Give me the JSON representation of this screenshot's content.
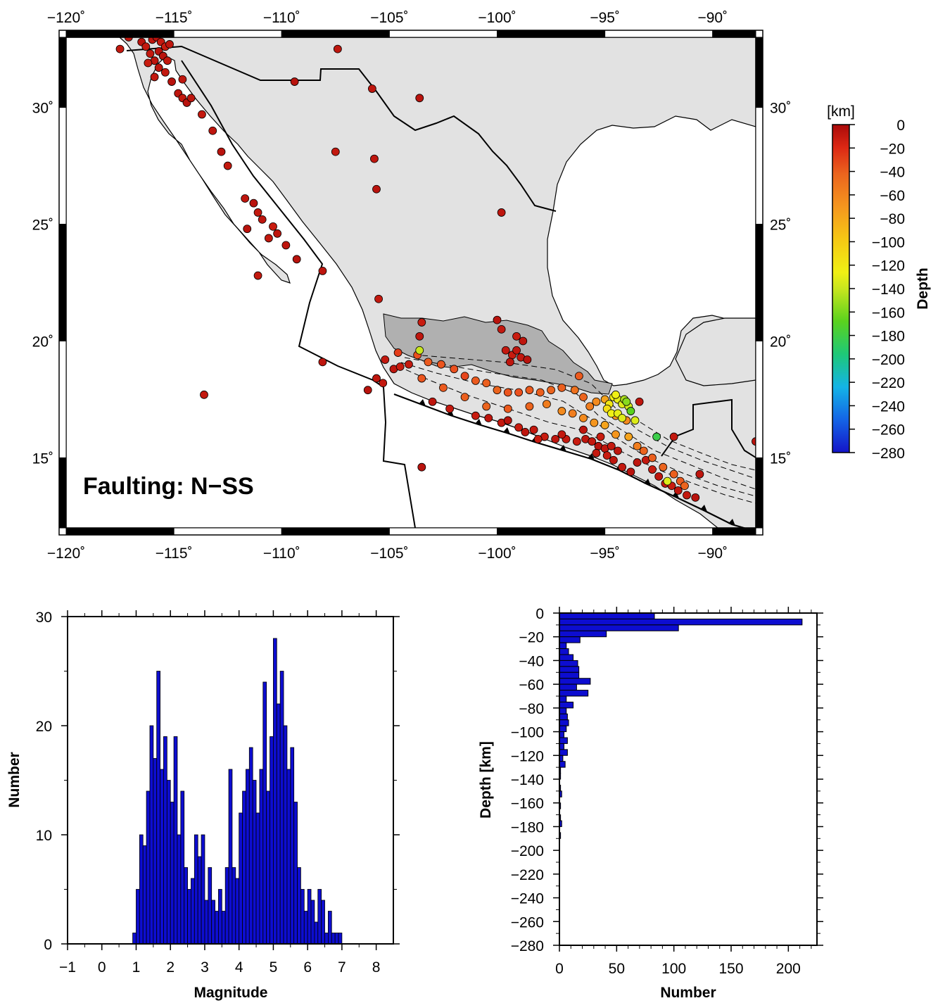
{
  "map": {
    "lon_ticks": [
      "−120˚",
      "−115˚",
      "−110˚",
      "−105˚",
      "−100˚",
      "−95˚",
      "−90˚"
    ],
    "lat_ticks": [
      "30˚",
      "25˚",
      "20˚",
      "15˚"
    ],
    "label": "Faulting: N−SS"
  },
  "colorbar": {
    "unit": "[km]",
    "title": "Depth",
    "ticks": [
      "0",
      "−20",
      "−40",
      "−60",
      "−80",
      "−100",
      "−120",
      "−140",
      "−160",
      "−180",
      "−200",
      "−220",
      "−240",
      "−260",
      "−280"
    ],
    "range": [
      -280,
      0
    ]
  },
  "colors": {
    "land": "#e2e2e2",
    "volcanic_belt": "#b0b0b0",
    "ocean": "#ffffff",
    "bar_fill": "#0d0dd0"
  },
  "chart_data": [
    {
      "type": "scatter",
      "xlim": [
        -120,
        -88
      ],
      "ylim": [
        12,
        33
      ],
      "points": [
        [
          -117.5,
          32.5,
          -10
        ],
        [
          -117.1,
          33.0,
          -8
        ],
        [
          -116.5,
          32.8,
          -6
        ],
        [
          -116.3,
          32.6,
          -10
        ],
        [
          -116.0,
          32.9,
          -8
        ],
        [
          -115.8,
          33.0,
          -5
        ],
        [
          -115.6,
          32.8,
          -10
        ],
        [
          -115.4,
          32.6,
          -12
        ],
        [
          -115.7,
          32.4,
          -6
        ],
        [
          -115.2,
          32.7,
          -8
        ],
        [
          -116.1,
          32.3,
          -10
        ],
        [
          -115.9,
          32.0,
          -8
        ],
        [
          -115.5,
          32.2,
          -6
        ],
        [
          -115.3,
          32.0,
          -10
        ],
        [
          -116.2,
          31.9,
          -12
        ],
        [
          -115.7,
          31.7,
          -8
        ],
        [
          -115.9,
          31.3,
          -10
        ],
        [
          -115.1,
          31.1,
          -6
        ],
        [
          -114.6,
          31.2,
          -8
        ],
        [
          -115.4,
          31.5,
          -10
        ],
        [
          -114.8,
          30.6,
          -8
        ],
        [
          -114.6,
          30.4,
          -10
        ],
        [
          -114.4,
          30.2,
          -6
        ],
        [
          -114.2,
          30.4,
          -8
        ],
        [
          -113.7,
          29.7,
          -10
        ],
        [
          -113.2,
          29.0,
          -8
        ],
        [
          -112.8,
          28.1,
          -6
        ],
        [
          -112.5,
          27.5,
          -10
        ],
        [
          -111.7,
          26.1,
          -8
        ],
        [
          -111.3,
          25.9,
          -6
        ],
        [
          -111.1,
          25.5,
          -10
        ],
        [
          -110.9,
          25.2,
          -8
        ],
        [
          -110.4,
          24.9,
          -12
        ],
        [
          -110.2,
          24.6,
          -8
        ],
        [
          -110.6,
          24.4,
          -10
        ],
        [
          -111.6,
          24.8,
          -6
        ],
        [
          -109.8,
          24.1,
          -8
        ],
        [
          -109.3,
          23.5,
          -6
        ],
        [
          -108.1,
          23.0,
          -8
        ],
        [
          -111.1,
          22.8,
          -10
        ],
        [
          -107.4,
          32.5,
          -8
        ],
        [
          -109.4,
          31.1,
          -6
        ],
        [
          -105.8,
          30.8,
          -8
        ],
        [
          -103.6,
          30.4,
          -6
        ],
        [
          -107.5,
          28.1,
          -10
        ],
        [
          -105.7,
          27.8,
          -8
        ],
        [
          -105.6,
          26.5,
          -6
        ],
        [
          -99.8,
          25.5,
          -8
        ],
        [
          -113.6,
          17.7,
          -10
        ],
        [
          -108.1,
          19.1,
          -8
        ],
        [
          -103.5,
          14.6,
          -6
        ],
        [
          -88.0,
          15.7,
          -8
        ],
        [
          -91.8,
          15.9,
          -10
        ],
        [
          -93.4,
          17.4,
          -8
        ],
        [
          -105.5,
          21.8,
          -10
        ],
        [
          -103.5,
          20.8,
          -12
        ],
        [
          -103.6,
          20.2,
          -8
        ],
        [
          -100.0,
          20.9,
          -6
        ],
        [
          -99.8,
          20.5,
          -10
        ],
        [
          -99.1,
          20.2,
          -12
        ],
        [
          -98.8,
          20.0,
          -8
        ],
        [
          -99.6,
          19.6,
          -10
        ],
        [
          -99.3,
          19.4,
          -12
        ],
        [
          -99.1,
          19.6,
          -8
        ],
        [
          -98.9,
          19.3,
          -10
        ],
        [
          -98.6,
          19.2,
          -6
        ],
        [
          -99.4,
          19.1,
          -8
        ],
        [
          -105.2,
          19.2,
          -10
        ],
        [
          -104.8,
          18.8,
          -8
        ],
        [
          -104.5,
          18.9,
          -12
        ],
        [
          -104.1,
          19.0,
          -10
        ],
        [
          -105.6,
          18.4,
          -8
        ],
        [
          -105.3,
          18.2,
          -10
        ],
        [
          -106.0,
          17.9,
          -6
        ],
        [
          -103.0,
          17.4,
          -8
        ],
        [
          -102.2,
          17.1,
          -10
        ],
        [
          -101.0,
          16.8,
          -12
        ],
        [
          -100.4,
          16.7,
          -8
        ],
        [
          -99.8,
          16.5,
          -10
        ],
        [
          -99.5,
          16.6,
          -6
        ],
        [
          -99.0,
          16.3,
          -12
        ],
        [
          -98.7,
          16.1,
          -8
        ],
        [
          -98.3,
          16.2,
          -10
        ],
        [
          -97.8,
          15.9,
          -12
        ],
        [
          -97.3,
          15.8,
          -8
        ],
        [
          -96.8,
          15.8,
          -10
        ],
        [
          -96.3,
          15.7,
          -12
        ],
        [
          -95.9,
          15.8,
          -8
        ],
        [
          -95.6,
          15.7,
          -10
        ],
        [
          -95.3,
          15.5,
          -6
        ],
        [
          -95.0,
          15.4,
          -8
        ],
        [
          -95.4,
          15.2,
          -10
        ],
        [
          -94.9,
          15.1,
          -12
        ],
        [
          -94.6,
          14.9,
          -8
        ],
        [
          -94.2,
          14.6,
          -10
        ],
        [
          -93.8,
          14.4,
          -6
        ],
        [
          -93.5,
          14.8,
          -8
        ],
        [
          -93.1,
          14.9,
          -10
        ],
        [
          -92.8,
          14.5,
          -12
        ],
        [
          -92.5,
          14.2,
          -8
        ],
        [
          -92.2,
          13.9,
          -10
        ],
        [
          -91.9,
          13.8,
          -12
        ],
        [
          -91.6,
          13.6,
          -8
        ],
        [
          -91.2,
          13.4,
          -10
        ],
        [
          -90.8,
          13.3,
          -6
        ],
        [
          -90.6,
          14.3,
          -8
        ],
        [
          -94.7,
          15.5,
          -10
        ],
        [
          -95.2,
          15.9,
          -12
        ],
        [
          -94.4,
          15.3,
          -8
        ],
        [
          -97.0,
          16.0,
          -10
        ],
        [
          -98.1,
          15.8,
          -12
        ],
        [
          -96.0,
          16.2,
          -8
        ],
        [
          -104.6,
          19.5,
          -30
        ],
        [
          -103.7,
          19.4,
          -40
        ],
        [
          -103.2,
          19.1,
          -50
        ],
        [
          -102.6,
          19.0,
          -45
        ],
        [
          -102.0,
          18.8,
          -40
        ],
        [
          -101.5,
          18.5,
          -35
        ],
        [
          -101.0,
          18.3,
          -50
        ],
        [
          -100.5,
          18.2,
          -55
        ],
        [
          -100.0,
          17.9,
          -60
        ],
        [
          -99.5,
          17.8,
          -45
        ],
        [
          -99.0,
          17.8,
          -40
        ],
        [
          -98.5,
          17.9,
          -50
        ],
        [
          -98.0,
          17.8,
          -55
        ],
        [
          -97.5,
          17.9,
          -60
        ],
        [
          -97.0,
          18.0,
          -55
        ],
        [
          -96.4,
          17.9,
          -65
        ],
        [
          -96.0,
          17.6,
          -60
        ],
        [
          -95.7,
          17.2,
          -70
        ],
        [
          -95.4,
          17.4,
          -75
        ],
        [
          -95.0,
          17.5,
          -85
        ],
        [
          -103.5,
          18.4,
          -45
        ],
        [
          -102.5,
          18.0,
          -50
        ],
        [
          -101.5,
          17.6,
          -55
        ],
        [
          -100.5,
          17.2,
          -60
        ],
        [
          -99.5,
          17.1,
          -50
        ],
        [
          -98.5,
          17.2,
          -60
        ],
        [
          -97.7,
          17.3,
          -70
        ],
        [
          -97.0,
          17.0,
          -75
        ],
        [
          -96.5,
          16.9,
          -70
        ],
        [
          -96.0,
          16.7,
          -75
        ],
        [
          -95.5,
          16.5,
          -80
        ],
        [
          -95.0,
          16.4,
          -85
        ],
        [
          -94.5,
          16.0,
          -80
        ],
        [
          -93.9,
          15.9,
          -85
        ],
        [
          -93.5,
          15.5,
          -70
        ],
        [
          -93.2,
          15.3,
          -60
        ],
        [
          -92.8,
          15.0,
          -55
        ],
        [
          -92.3,
          14.6,
          -60
        ],
        [
          -91.8,
          14.3,
          -55
        ],
        [
          -91.5,
          14.0,
          -50
        ],
        [
          -91.3,
          13.8,
          -60
        ],
        [
          -96.2,
          18.5,
          -50
        ],
        [
          -94.0,
          16.6,
          -75
        ],
        [
          -94.5,
          16.8,
          -80
        ],
        [
          -94.6,
          17.6,
          -120
        ],
        [
          -94.4,
          17.5,
          -125
        ],
        [
          -94.2,
          17.3,
          -130
        ],
        [
          -94.8,
          17.3,
          -115
        ],
        [
          -94.9,
          17.1,
          -110
        ],
        [
          -94.7,
          16.9,
          -120
        ],
        [
          -94.4,
          16.9,
          -125
        ],
        [
          -94.2,
          16.7,
          -130
        ],
        [
          -94.5,
          17.7,
          -120
        ],
        [
          -93.6,
          16.6,
          -130
        ],
        [
          -93.9,
          17.2,
          -135
        ],
        [
          -94.1,
          17.5,
          -150
        ],
        [
          -94.0,
          17.4,
          -165
        ],
        [
          -93.8,
          17.0,
          -180
        ],
        [
          -92.6,
          15.9,
          -190
        ],
        [
          -103.6,
          19.6,
          -140
        ],
        [
          -92.1,
          14.0,
          -130
        ]
      ]
    },
    {
      "type": "bar",
      "xlabel": "Magnitude",
      "ylabel": "Number",
      "xlim": [
        -1,
        8.5
      ],
      "ylim": [
        0,
        30
      ],
      "xticks": [
        "−1",
        "0",
        "1",
        "2",
        "3",
        "4",
        "5",
        "6",
        "7",
        "8"
      ],
      "yticks": [
        "0",
        "10",
        "20",
        "30"
      ],
      "bin_width": 0.1,
      "bin_start": 0.9,
      "values": [
        1,
        5,
        10,
        9,
        14,
        20,
        17,
        25,
        16,
        19,
        15,
        13,
        19,
        10,
        14,
        7,
        5,
        6,
        10,
        8,
        10,
        4,
        7,
        4,
        3,
        5,
        3,
        7,
        16,
        7,
        6,
        12,
        14,
        16,
        18,
        15,
        12,
        16,
        24,
        14,
        19,
        28,
        22,
        25,
        20,
        16,
        18,
        13,
        7,
        5,
        3,
        5,
        4,
        2,
        5,
        4,
        1,
        3,
        1,
        1,
        1
      ]
    },
    {
      "type": "bar",
      "orientation": "horizontal",
      "xlabel": "Number",
      "ylabel": "Depth [km]",
      "xlim": [
        0,
        225
      ],
      "ylim": [
        -280,
        0
      ],
      "xticks": [
        "0",
        "50",
        "100",
        "150",
        "200"
      ],
      "yticks": [
        "0",
        "−20",
        "−40",
        "−60",
        "−80",
        "−100",
        "−120",
        "−140",
        "−160",
        "−180",
        "−200",
        "−220",
        "−240",
        "−260",
        "−280"
      ],
      "bin_width": 5,
      "bin_top": 0,
      "values": [
        83,
        212,
        104,
        41,
        18,
        6,
        8,
        12,
        16,
        17,
        17,
        27,
        15,
        25,
        6,
        12,
        6,
        7,
        8,
        6,
        4,
        7,
        4,
        7,
        3,
        5,
        1,
        1,
        0,
        1,
        2,
        0,
        1,
        0,
        1,
        2,
        0,
        1
      ]
    }
  ]
}
